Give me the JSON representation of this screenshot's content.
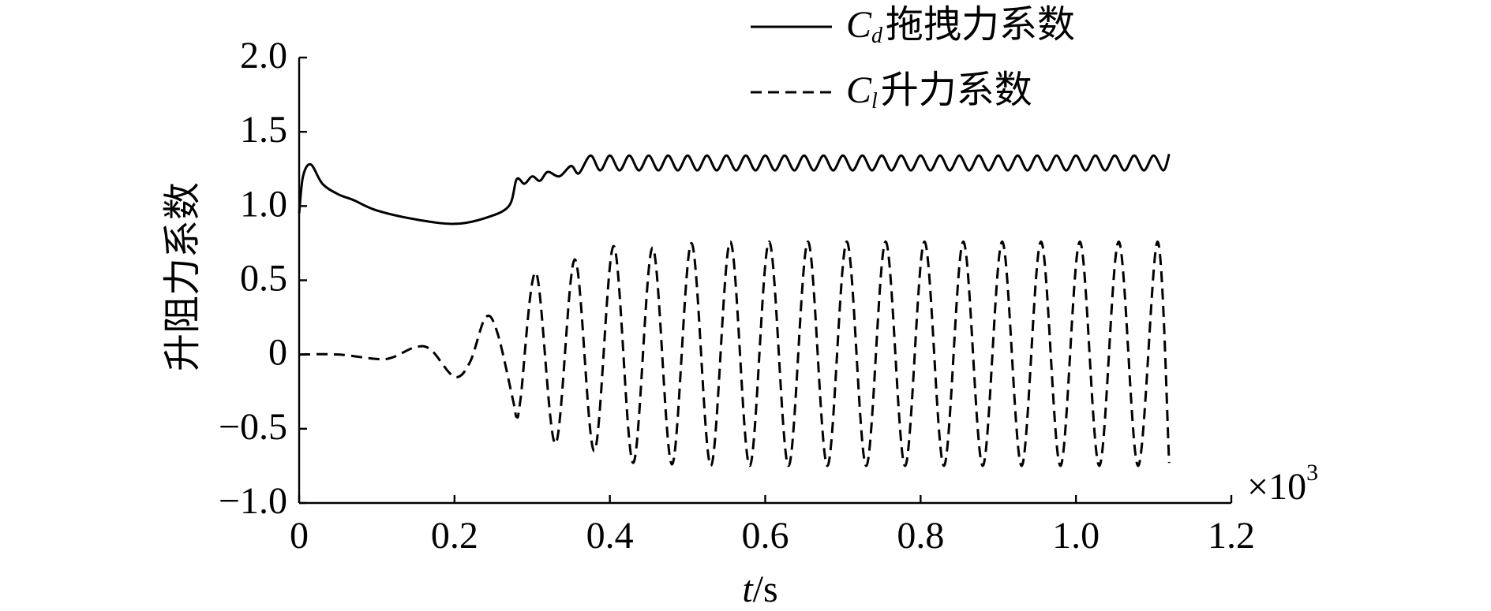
{
  "chart_data": {
    "type": "line",
    "ylabel": "升阻力系数",
    "xlabel": {
      "symbol": "t",
      "text": "/s"
    },
    "x_multiplier": {
      "base": "×10",
      "exponent": "3"
    },
    "xlim": [
      0,
      1.2
    ],
    "xticks": [
      0,
      0.2,
      0.4,
      0.6,
      0.8,
      {
        "value": 1.0,
        "label": "1.0"
      },
      1.2
    ],
    "ylim": [
      -1.0,
      2.0
    ],
    "yticks": [
      {
        "value": -1.0,
        "label": "−1.0"
      },
      {
        "value": -0.5,
        "label": "−0.5"
      },
      0,
      0.5,
      {
        "value": 1.0,
        "label": "1.0"
      },
      1.5,
      {
        "value": 2.0,
        "label": "2.0"
      }
    ],
    "grid": false,
    "legend": "top-center",
    "series": [
      {
        "name": {
          "symbol": "C",
          "subscript": "d",
          "text": "拖拽力系数"
        },
        "color": "#000000",
        "dash": "solid",
        "x": [
          0,
          0.005,
          0.015,
          0.03,
          0.05,
          0.07,
          0.1,
          0.15,
          0.2,
          0.24,
          0.27,
          0.28,
          0.29,
          0.3,
          0.31,
          0.32,
          0.335,
          0.35,
          0.36,
          0.375,
          0.3875,
          0.4,
          0.4125,
          0.425,
          0.4375,
          0.45,
          0.4625,
          0.475,
          0.4875,
          0.5,
          0.5125,
          0.525,
          0.5375,
          0.55,
          0.5625,
          0.575,
          0.5875,
          0.6,
          0.6125,
          0.625,
          0.6375,
          0.65,
          0.6625,
          0.675,
          0.6875,
          0.7,
          0.7125,
          0.725,
          0.7375,
          0.75,
          0.7625,
          0.775,
          0.7875,
          0.8,
          0.8125,
          0.825,
          0.8375,
          0.85,
          0.8625,
          0.875,
          0.8875,
          0.9,
          0.9125,
          0.925,
          0.9375,
          0.95,
          0.9625,
          0.975,
          0.9875,
          1.0,
          1.0125,
          1.025,
          1.0375,
          1.05,
          1.0625,
          1.075,
          1.0875,
          1.1,
          1.1125,
          1.12
        ],
        "values": [
          0.95,
          1.2,
          1.28,
          1.15,
          1.08,
          1.04,
          0.97,
          0.91,
          0.88,
          0.92,
          1.0,
          1.18,
          1.15,
          1.2,
          1.17,
          1.23,
          1.2,
          1.27,
          1.22,
          1.34,
          1.24,
          1.34,
          1.24,
          1.34,
          1.24,
          1.34,
          1.24,
          1.34,
          1.24,
          1.34,
          1.24,
          1.34,
          1.24,
          1.34,
          1.24,
          1.34,
          1.24,
          1.34,
          1.24,
          1.34,
          1.24,
          1.34,
          1.24,
          1.34,
          1.24,
          1.34,
          1.24,
          1.34,
          1.24,
          1.34,
          1.24,
          1.34,
          1.24,
          1.34,
          1.24,
          1.34,
          1.24,
          1.34,
          1.24,
          1.34,
          1.24,
          1.34,
          1.24,
          1.34,
          1.24,
          1.34,
          1.24,
          1.34,
          1.24,
          1.34,
          1.24,
          1.34,
          1.24,
          1.34,
          1.24,
          1.34,
          1.24,
          1.34,
          1.24,
          1.35
        ]
      },
      {
        "name": {
          "symbol": "C",
          "subscript": "l",
          "text": "升力系数"
        },
        "color": "#000000",
        "dash": "dashed",
        "x": [
          0,
          0.05,
          0.1,
          0.12,
          0.15,
          0.17,
          0.2,
          0.22,
          0.24,
          0.255,
          0.275,
          0.28,
          0.285,
          0.305,
          0.33,
          0.355,
          0.38,
          0.405,
          0.43,
          0.455,
          0.48,
          0.505,
          0.53,
          0.555,
          0.58,
          0.605,
          0.63,
          0.655,
          0.68,
          0.705,
          0.73,
          0.755,
          0.78,
          0.805,
          0.83,
          0.855,
          0.88,
          0.905,
          0.93,
          0.955,
          0.98,
          1.005,
          1.03,
          1.055,
          1.08,
          1.105,
          1.12
        ],
        "values": [
          0,
          0,
          -0.03,
          -0.02,
          0.05,
          0.03,
          -0.15,
          -0.05,
          0.25,
          0.15,
          -0.3,
          -0.42,
          -0.3,
          0.55,
          -0.6,
          0.64,
          -0.65,
          0.73,
          -0.73,
          0.72,
          -0.74,
          0.75,
          -0.75,
          0.76,
          -0.75,
          0.76,
          -0.75,
          0.76,
          -0.75,
          0.76,
          -0.75,
          0.76,
          -0.75,
          0.76,
          -0.75,
          0.76,
          -0.75,
          0.76,
          -0.75,
          0.76,
          -0.75,
          0.76,
          -0.75,
          0.76,
          -0.75,
          0.76,
          -0.73
        ]
      }
    ]
  }
}
